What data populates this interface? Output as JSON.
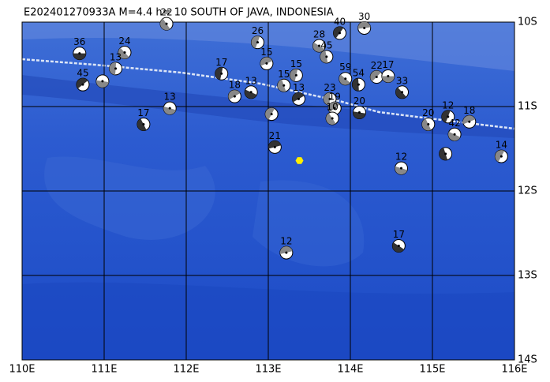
{
  "map": {
    "title": "E202401270933A M=4.4 h= 10 SOUTH OF JAVA, INDONESIA",
    "xlim": [
      110,
      116
    ],
    "ylim": [
      -14,
      -10
    ],
    "xticks": [
      {
        "value": 110,
        "label": "110E"
      },
      {
        "value": 111,
        "label": "111E"
      },
      {
        "value": 112,
        "label": "112E"
      },
      {
        "value": 113,
        "label": "113E"
      },
      {
        "value": 114,
        "label": "114E"
      },
      {
        "value": 115,
        "label": "115E"
      },
      {
        "value": 116,
        "label": "116E"
      }
    ],
    "yticks": [
      {
        "value": -10,
        "label": "10S"
      },
      {
        "value": -11,
        "label": "11S"
      },
      {
        "value": -12,
        "label": "12S"
      },
      {
        "value": -13,
        "label": "13S"
      },
      {
        "value": -14,
        "label": "14S"
      }
    ],
    "epicenter": {
      "lon": 113.38,
      "lat": -11.64,
      "color": "#ffee00"
    },
    "events": [
      {
        "lon": 110.7,
        "lat": -10.37,
        "depth": "36"
      },
      {
        "lon": 111.25,
        "lat": -10.36,
        "depth": "24"
      },
      {
        "lon": 111.14,
        "lat": -10.55,
        "depth": "13"
      },
      {
        "lon": 110.74,
        "lat": -10.74,
        "depth": "45"
      },
      {
        "lon": 110.98,
        "lat": -10.7,
        "depth": null
      },
      {
        "lon": 111.76,
        "lat": -10.02,
        "depth": "22"
      },
      {
        "lon": 112.43,
        "lat": -10.61,
        "depth": "17"
      },
      {
        "lon": 112.59,
        "lat": -10.88,
        "depth": "18"
      },
      {
        "lon": 111.8,
        "lat": -11.02,
        "depth": "13"
      },
      {
        "lon": 111.48,
        "lat": -11.21,
        "depth": "17"
      },
      {
        "lon": 112.87,
        "lat": -10.24,
        "depth": "26"
      },
      {
        "lon": 112.98,
        "lat": -10.49,
        "depth": "15"
      },
      {
        "lon": 112.79,
        "lat": -10.83,
        "depth": "13"
      },
      {
        "lon": 113.19,
        "lat": -10.75,
        "depth": "15"
      },
      {
        "lon": 113.04,
        "lat": -11.09,
        "depth": null
      },
      {
        "lon": 113.08,
        "lat": -11.48,
        "depth": "21"
      },
      {
        "lon": 113.62,
        "lat": -10.28,
        "depth": "28"
      },
      {
        "lon": 113.71,
        "lat": -10.41,
        "depth": "45"
      },
      {
        "lon": 113.87,
        "lat": -10.13,
        "depth": "40"
      },
      {
        "lon": 114.17,
        "lat": -10.07,
        "depth": "30"
      },
      {
        "lon": 113.94,
        "lat": -10.67,
        "depth": "59"
      },
      {
        "lon": 114.1,
        "lat": -10.74,
        "depth": "54"
      },
      {
        "lon": 114.32,
        "lat": -10.65,
        "depth": "22"
      },
      {
        "lon": 114.46,
        "lat": -10.64,
        "depth": "17"
      },
      {
        "lon": 114.63,
        "lat": -10.83,
        "depth": "33"
      },
      {
        "lon": 113.75,
        "lat": -10.91,
        "depth": "23"
      },
      {
        "lon": 113.81,
        "lat": -11.02,
        "depth": "19"
      },
      {
        "lon": 114.11,
        "lat": -11.07,
        "depth": "20"
      },
      {
        "lon": 113.78,
        "lat": -11.14,
        "depth": "10"
      },
      {
        "lon": 113.34,
        "lat": -10.63,
        "depth": "15"
      },
      {
        "lon": 113.37,
        "lat": -10.91,
        "depth": "13"
      },
      {
        "lon": 114.62,
        "lat": -11.73,
        "depth": "12"
      },
      {
        "lon": 114.95,
        "lat": -11.21,
        "depth": "20"
      },
      {
        "lon": 115.19,
        "lat": -11.12,
        "depth": "12"
      },
      {
        "lon": 115.45,
        "lat": -11.18,
        "depth": "18"
      },
      {
        "lon": 115.27,
        "lat": -11.33,
        "depth": "42"
      },
      {
        "lon": 115.16,
        "lat": -11.56,
        "depth": null
      },
      {
        "lon": 115.84,
        "lat": -11.59,
        "depth": "14"
      },
      {
        "lon": 113.22,
        "lat": -12.73,
        "depth": "12"
      },
      {
        "lon": 114.59,
        "lat": -12.65,
        "depth": "17"
      }
    ]
  }
}
